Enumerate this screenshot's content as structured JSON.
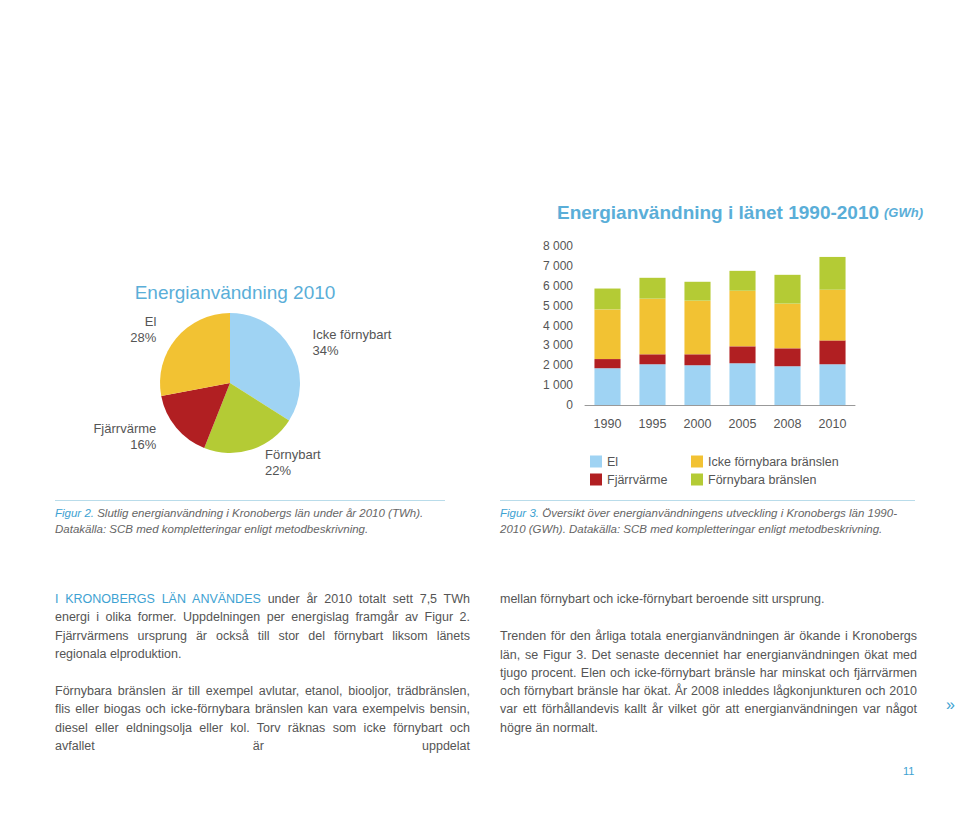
{
  "chart_data": [
    {
      "type": "pie",
      "title": "Energianvändning 2010",
      "categories": [
        "Icke förnybart",
        "Förnybart",
        "Fjärrvärme",
        "El"
      ],
      "values": [
        34,
        22,
        16,
        28
      ],
      "value_labels": [
        "34%",
        "22%",
        "16%",
        "28%"
      ],
      "colors": [
        "#9fd3f3",
        "#b4cb35",
        "#b11f22",
        "#f2c233"
      ],
      "data_labels": true
    },
    {
      "type": "bar",
      "title": "Energianvändning i länet 1990-2010",
      "subtitle": "(GWh)",
      "stacked": true,
      "categories": [
        "1990",
        "1995",
        "2000",
        "2005",
        "2008",
        "2010"
      ],
      "series": [
        {
          "name": "El",
          "color": "#9fd3f3",
          "values": [
            1850,
            2050,
            2000,
            2100,
            1950,
            2050
          ]
        },
        {
          "name": "Fjärrvärme",
          "color": "#b11f22",
          "values": [
            460,
            500,
            550,
            850,
            900,
            1200
          ]
        },
        {
          "name": "Icke förnybara bränslen",
          "color": "#f2c233",
          "values": [
            2500,
            2800,
            2700,
            2800,
            2250,
            2550
          ]
        },
        {
          "name": "Förnybara bränslen",
          "color": "#b4cb35",
          "values": [
            1050,
            1050,
            950,
            1000,
            1450,
            1650
          ]
        }
      ],
      "ylim": [
        0,
        8000
      ],
      "yticks": [
        0,
        {
          "value": 1000,
          "label": "1 000"
        },
        {
          "value": 2000,
          "label": "2 000"
        },
        {
          "value": 3000,
          "label": "3 000"
        },
        {
          "value": 4000,
          "label": "4 000"
        },
        {
          "value": 5000,
          "label": "5 000"
        },
        {
          "value": 6000,
          "label": "6 000"
        },
        {
          "value": 7000,
          "label": "7 000"
        },
        {
          "value": 8000,
          "label": "8 000"
        }
      ],
      "grid": false,
      "legend": "bottom"
    }
  ],
  "captions": [
    {
      "label": "Figur 2.",
      "text": "Slutlig energianvändning i Kronobergs län under år 2010 (TWh). Datakälla: SCB med kompletteringar enligt metodbeskrivning."
    },
    {
      "label": "Figur 3.",
      "text": "Översikt över energianvändningens utveckling i Kronobergs län 1990-2010 (GWh). Datakälla: SCB med kompletteringar enligt metodbeskrivning."
    }
  ],
  "body": {
    "columns": [
      [
        {
          "lead": "I KRONOBERGS LÄN ANVÄNDES",
          "text": "under år 2010 totalt sett 7,5 TWh energi i olika former. Uppdelningen per energislag framgår av Figur 2. Fjärrvärmens ursprung är också till stor del förnybart liksom länets regionala elproduktion."
        },
        {
          "text": "Förnybara bränslen är till exempel avlutar, etanol, biooljor, trädbränslen, flis eller biogas och icke-förnybara bränslen kan vara exempelvis bensin, diesel eller eldningsolja eller kol. Torv räknas som icke förnybart och avfallet är uppdelat"
        }
      ],
      [
        {
          "text": "mellan förnybart och icke-förnybart beroende sitt ursprung."
        },
        {
          "text": "Trenden för den årliga totala energianvändningen är ökande i Kronobergs län, se Figur 3. Det senaste decenniet har energianvändningen ökat med tjugo procent. Elen och icke-förnybart bränsle har minskat och fjärrvärmen och förnybart bränsle har ökat. År 2008 inleddes lågkonjunkturen och 2010 var ett förhållandevis kallt år vilket gör att energianvändningen var något högre än normalt."
        }
      ]
    ]
  },
  "continuation_mark": "»",
  "page_number": "11"
}
